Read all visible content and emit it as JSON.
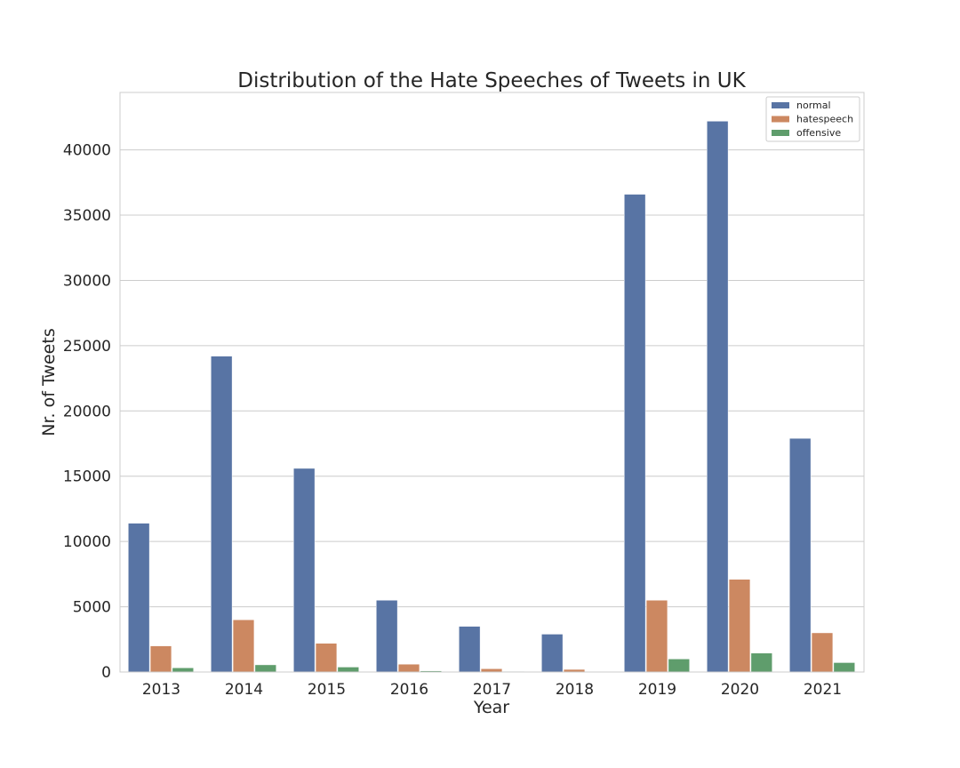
{
  "chart_data": {
    "type": "bar",
    "title": "Distribution of the Hate Speeches of Tweets in UK",
    "xlabel": "Year",
    "ylabel": "Nr. of Tweets",
    "categories": [
      "2013",
      "2014",
      "2015",
      "2016",
      "2017",
      "2018",
      "2019",
      "2020",
      "2021"
    ],
    "series": [
      {
        "name": "normal",
        "color": "#5874a4",
        "values": [
          11400,
          24200,
          15600,
          5500,
          3500,
          2900,
          36600,
          42200,
          17900
        ]
      },
      {
        "name": "hatespeech",
        "color": "#cc8861",
        "values": [
          2000,
          4000,
          2200,
          600,
          250,
          200,
          5500,
          7100,
          3000
        ]
      },
      {
        "name": "offensive",
        "color": "#5f9d6c",
        "values": [
          320,
          550,
          380,
          90,
          40,
          30,
          1000,
          1450,
          720
        ]
      }
    ],
    "ylim": [
      0,
      44400
    ],
    "yticks": [
      0,
      5000,
      10000,
      15000,
      20000,
      25000,
      30000,
      35000,
      40000
    ],
    "grid": true,
    "legend_position": "top-right"
  }
}
